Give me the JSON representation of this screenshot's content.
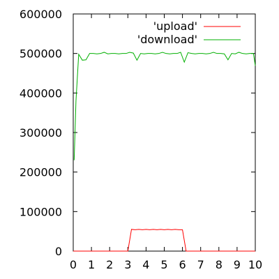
{
  "chart_data": {
    "type": "line",
    "title": "",
    "xlabel": "",
    "ylabel": "",
    "xlim": [
      0,
      10
    ],
    "ylim": [
      0,
      600000
    ],
    "xticks": [
      0,
      1,
      2,
      3,
      4,
      5,
      6,
      7,
      8,
      9,
      10
    ],
    "yticks": [
      0,
      100000,
      200000,
      300000,
      400000,
      500000,
      600000
    ],
    "xtick_labels": [
      "0",
      "1",
      "2",
      "3",
      "4",
      "5",
      "6",
      "7",
      "8",
      "9",
      "10"
    ],
    "ytick_labels": [
      "0",
      "100000",
      "200000",
      "300000",
      "400000",
      "500000",
      "600000"
    ],
    "grid": false,
    "legend_position": "top-right",
    "series": [
      {
        "name": "'upload'",
        "color": "#ff0000",
        "x": [
          0.0,
          1.0,
          2.0,
          3.0,
          3.2,
          3.4,
          3.6,
          3.8,
          4.0,
          4.2,
          4.4,
          4.6,
          4.8,
          5.0,
          5.2,
          5.4,
          5.6,
          5.8,
          6.0,
          6.2,
          6.4,
          8.0,
          10.0
        ],
        "values": [
          0,
          0,
          0,
          0,
          55000,
          54000,
          55000,
          54000,
          55000,
          54000,
          55000,
          54000,
          55000,
          54000,
          55000,
          54000,
          55000,
          54000,
          54000,
          0,
          0,
          0,
          0
        ]
      },
      {
        "name": "'download'",
        "color": "#00b000",
        "x": [
          0.05,
          0.15,
          0.3,
          0.5,
          0.7,
          0.9,
          1.1,
          1.3,
          1.5,
          1.7,
          1.9,
          2.1,
          2.3,
          2.5,
          2.7,
          2.9,
          3.1,
          3.3,
          3.5,
          3.7,
          3.9,
          4.1,
          4.3,
          4.5,
          4.7,
          4.9,
          5.1,
          5.3,
          5.5,
          5.7,
          5.9,
          6.1,
          6.3,
          6.5,
          6.7,
          6.9,
          7.1,
          7.3,
          7.5,
          7.7,
          7.9,
          8.1,
          8.3,
          8.5,
          8.7,
          8.9,
          9.1,
          9.3,
          9.5,
          9.7,
          9.9,
          10.0
        ],
        "values": [
          230000,
          380000,
          498000,
          483000,
          484000,
          500000,
          500000,
          499000,
          500000,
          503000,
          499000,
          500000,
          500000,
          499000,
          500000,
          500000,
          503000,
          501000,
          483000,
          500000,
          499000,
          500000,
          500000,
          499000,
          500000,
          503000,
          500000,
          499000,
          500000,
          500000,
          503000,
          478000,
          502000,
          500000,
          499000,
          500000,
          500000,
          499000,
          500000,
          503000,
          500000,
          500000,
          499000,
          484000,
          500000,
          499000,
          503000,
          500000,
          499000,
          500000,
          500000,
          469000
        ]
      }
    ]
  }
}
